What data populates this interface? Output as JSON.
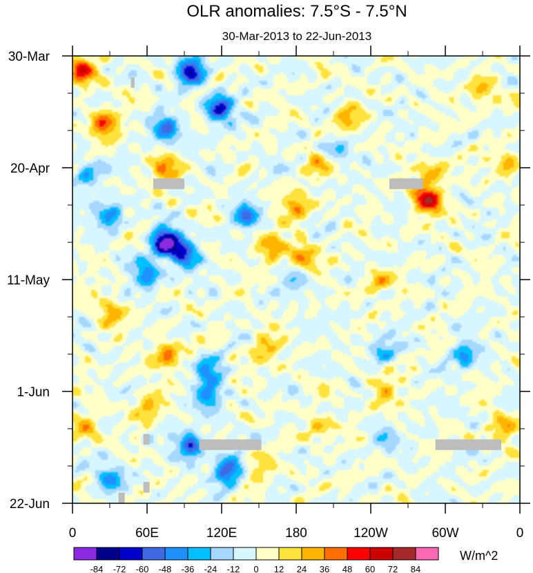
{
  "chart_data": {
    "type": "heatmap",
    "title": "OLR anomalies: 7.5°S - 7.5°N",
    "subtitle": "30-Mar-2013 to 22-Jun-2013",
    "x_axis": {
      "ticks": [
        {
          "label": "0",
          "lon": 0
        },
        {
          "label": "60E",
          "lon": 60
        },
        {
          "label": "120E",
          "lon": 120
        },
        {
          "label": "180",
          "lon": 180
        },
        {
          "label": "120W",
          "lon": 240
        },
        {
          "label": "60W",
          "lon": 300
        },
        {
          "label": "0",
          "lon": 360
        }
      ],
      "range": [
        0,
        360
      ],
      "minor_step": 30
    },
    "y_axis": {
      "ticks": [
        {
          "label": "30-Mar",
          "day": 0
        },
        {
          "label": "20-Apr",
          "day": 21
        },
        {
          "label": "11-May",
          "day": 42
        },
        {
          "label": "1-Jun",
          "day": 63
        },
        {
          "label": "22-Jun",
          "day": 84
        }
      ],
      "range": [
        0,
        84
      ],
      "minor_step": 7
    },
    "colorbar": {
      "units": "W/m^2",
      "levels": [
        -84,
        -72,
        -60,
        -48,
        -36,
        -24,
        -12,
        0,
        12,
        24,
        36,
        48,
        60,
        72,
        84
      ],
      "colors": [
        "#8a2be2",
        "#00008b",
        "#0000cd",
        "#4169e1",
        "#1e90ff",
        "#00bfff",
        "#a6d7ff",
        "#d8f6ff",
        "#ffffc8",
        "#ffe23c",
        "#ffb400",
        "#ff6e00",
        "#ff0000",
        "#cd0000",
        "#a52a2a",
        "#ff69b4"
      ]
    },
    "features": [
      {
        "lon": 95,
        "day": 3,
        "value": -70
      },
      {
        "lon": 118,
        "day": 10,
        "value": -65
      },
      {
        "lon": 75,
        "day": 14,
        "value": -50
      },
      {
        "lon": 75,
        "day": 35,
        "value": -85
      },
      {
        "lon": 90,
        "day": 37,
        "value": -60
      },
      {
        "lon": 60,
        "day": 41,
        "value": -48
      },
      {
        "lon": 140,
        "day": 30,
        "value": -40
      },
      {
        "lon": 30,
        "day": 30,
        "value": -42
      },
      {
        "lon": 12,
        "day": 22,
        "value": -36
      },
      {
        "lon": 110,
        "day": 59,
        "value": -40
      },
      {
        "lon": 110,
        "day": 64,
        "value": -40
      },
      {
        "lon": 95,
        "day": 73,
        "value": -55
      },
      {
        "lon": 125,
        "day": 78,
        "value": -60
      },
      {
        "lon": 30,
        "day": 79,
        "value": -38
      },
      {
        "lon": 210,
        "day": 18,
        "value": -30
      },
      {
        "lon": 180,
        "day": 42,
        "value": -24
      },
      {
        "lon": 250,
        "day": 55,
        "value": -28
      },
      {
        "lon": 315,
        "day": 56,
        "value": -38
      },
      {
        "lon": 250,
        "day": 72,
        "value": -20
      },
      {
        "lon": 8,
        "day": 3,
        "value": 55
      },
      {
        "lon": 25,
        "day": 13,
        "value": 48
      },
      {
        "lon": 75,
        "day": 21,
        "value": 38
      },
      {
        "lon": 180,
        "day": 28,
        "value": 36
      },
      {
        "lon": 185,
        "day": 38,
        "value": 38
      },
      {
        "lon": 160,
        "day": 36,
        "value": 36
      },
      {
        "lon": 285,
        "day": 27,
        "value": 65
      },
      {
        "lon": 290,
        "day": 22,
        "value": 30
      },
      {
        "lon": 200,
        "day": 20,
        "value": 30
      },
      {
        "lon": 245,
        "day": 43,
        "value": 24
      },
      {
        "lon": 75,
        "day": 56,
        "value": 40
      },
      {
        "lon": 60,
        "day": 66,
        "value": 28
      },
      {
        "lon": 30,
        "day": 48,
        "value": 30
      },
      {
        "lon": 155,
        "day": 55,
        "value": 30
      },
      {
        "lon": 250,
        "day": 63,
        "value": 26
      },
      {
        "lon": 220,
        "day": 12,
        "value": 28
      },
      {
        "lon": 330,
        "day": 7,
        "value": 30
      },
      {
        "lon": 350,
        "day": 20,
        "value": 26
      },
      {
        "lon": 345,
        "day": 70,
        "value": 30
      },
      {
        "lon": 10,
        "day": 70,
        "value": 28
      },
      {
        "lon": 150,
        "day": 78,
        "value": 24
      },
      {
        "lon": 200,
        "day": 70,
        "value": 24
      }
    ],
    "missing": [
      {
        "lon": [
          47,
          50
        ],
        "day": [
          4,
          6
        ]
      },
      {
        "lon": [
          65,
          90
        ],
        "day": [
          23,
          25
        ]
      },
      {
        "lon": [
          255,
          282
        ],
        "day": [
          23,
          25
        ]
      },
      {
        "lon": [
          102,
          152
        ],
        "day": [
          72,
          74
        ]
      },
      {
        "lon": [
          292,
          345
        ],
        "day": [
          72,
          74
        ]
      },
      {
        "lon": [
          57,
          62
        ],
        "day": [
          71,
          73
        ]
      },
      {
        "lon": [
          57,
          62
        ],
        "day": [
          80,
          82
        ]
      },
      {
        "lon": [
          37,
          42
        ],
        "day": [
          82,
          84
        ]
      }
    ]
  }
}
